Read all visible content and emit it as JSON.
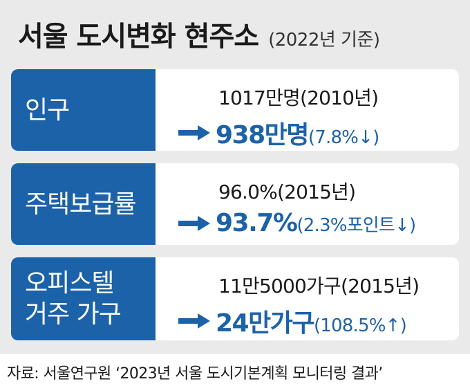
{
  "title": "서울 도시변화 현주소",
  "subtitle": "(2022년 기준)",
  "rows": [
    {
      "label_lines": [
        "인구"
      ],
      "before": "1017만명(2010년)",
      "after_main": "938만명",
      "after_note": "(7.8%↓)"
    },
    {
      "label_lines": [
        "주택보급률"
      ],
      "before": "96.0%(2015년)",
      "after_main": "93.7%",
      "after_note": "(2.3%포인트↓)"
    },
    {
      "label_lines": [
        "오피스텔",
        "거주 가구"
      ],
      "before": "11만5000가구(2015년)",
      "after_main": "24만가구",
      "after_note": "(108.5%↑)"
    }
  ],
  "source": "자료: 서울연구원 ‘2023년 서울 도시기본계획 모니터링 결과’",
  "colors": {
    "accent": "#1c62a8",
    "panel": "#eaeaea",
    "row_bg": "#ffffff"
  },
  "icons": {
    "trend_arrow": "right-arrow-icon"
  }
}
